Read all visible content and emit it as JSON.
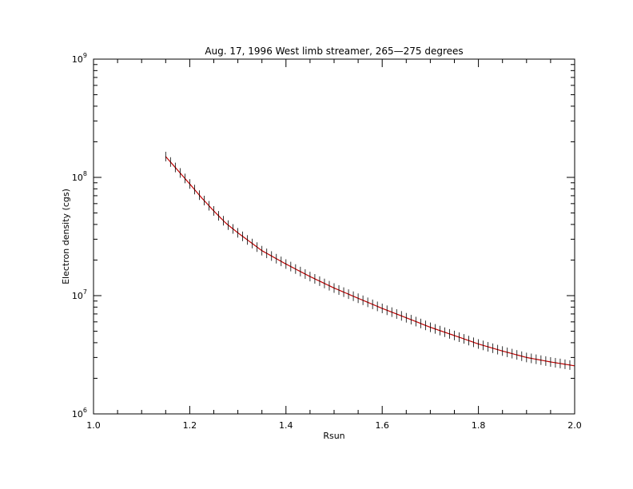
{
  "chart_data": {
    "type": "line",
    "title": "Aug. 17, 1996 West limb streamer, 265—275 degrees",
    "xlabel": "Rsun",
    "ylabel": "Electron density (cgs)",
    "xlim": [
      1.0,
      2.0
    ],
    "ylim": [
      1000000,
      1000000000
    ],
    "yscale": "log",
    "grid": false,
    "x_ticks": [
      {
        "value": 1.0,
        "label": "1.0"
      },
      {
        "value": 1.2,
        "label": "1.2"
      },
      {
        "value": 1.4,
        "label": "1.4"
      },
      {
        "value": 1.6,
        "label": "1.6"
      },
      {
        "value": 1.8,
        "label": "1.8"
      },
      {
        "value": 2.0,
        "label": "2.0"
      }
    ],
    "y_ticks": [
      {
        "value": 1000000,
        "base": "10",
        "exp": "6"
      },
      {
        "value": 10000000,
        "base": "10",
        "exp": "7"
      },
      {
        "value": 100000000,
        "base": "10",
        "exp": "8"
      },
      {
        "value": 1000000000,
        "base": "10",
        "exp": "9"
      }
    ],
    "series": [
      {
        "style": "error-bar points with fitted curve",
        "point_color": "#000000",
        "fit_color": "#c00000",
        "x": [
          1.15,
          1.175,
          1.2,
          1.225,
          1.25,
          1.275,
          1.3,
          1.35,
          1.4,
          1.45,
          1.5,
          1.55,
          1.6,
          1.65,
          1.7,
          1.75,
          1.8,
          1.85,
          1.9,
          1.95,
          2.0
        ],
        "y": [
          150000000,
          115000000,
          88000000,
          67000000,
          52000000,
          41000000,
          34000000,
          24000000,
          18500000,
          14500000,
          11600000,
          9500000,
          7800000,
          6500000,
          5400000,
          4600000,
          3900000,
          3400000,
          3000000,
          2750000,
          2550000
        ]
      }
    ]
  }
}
